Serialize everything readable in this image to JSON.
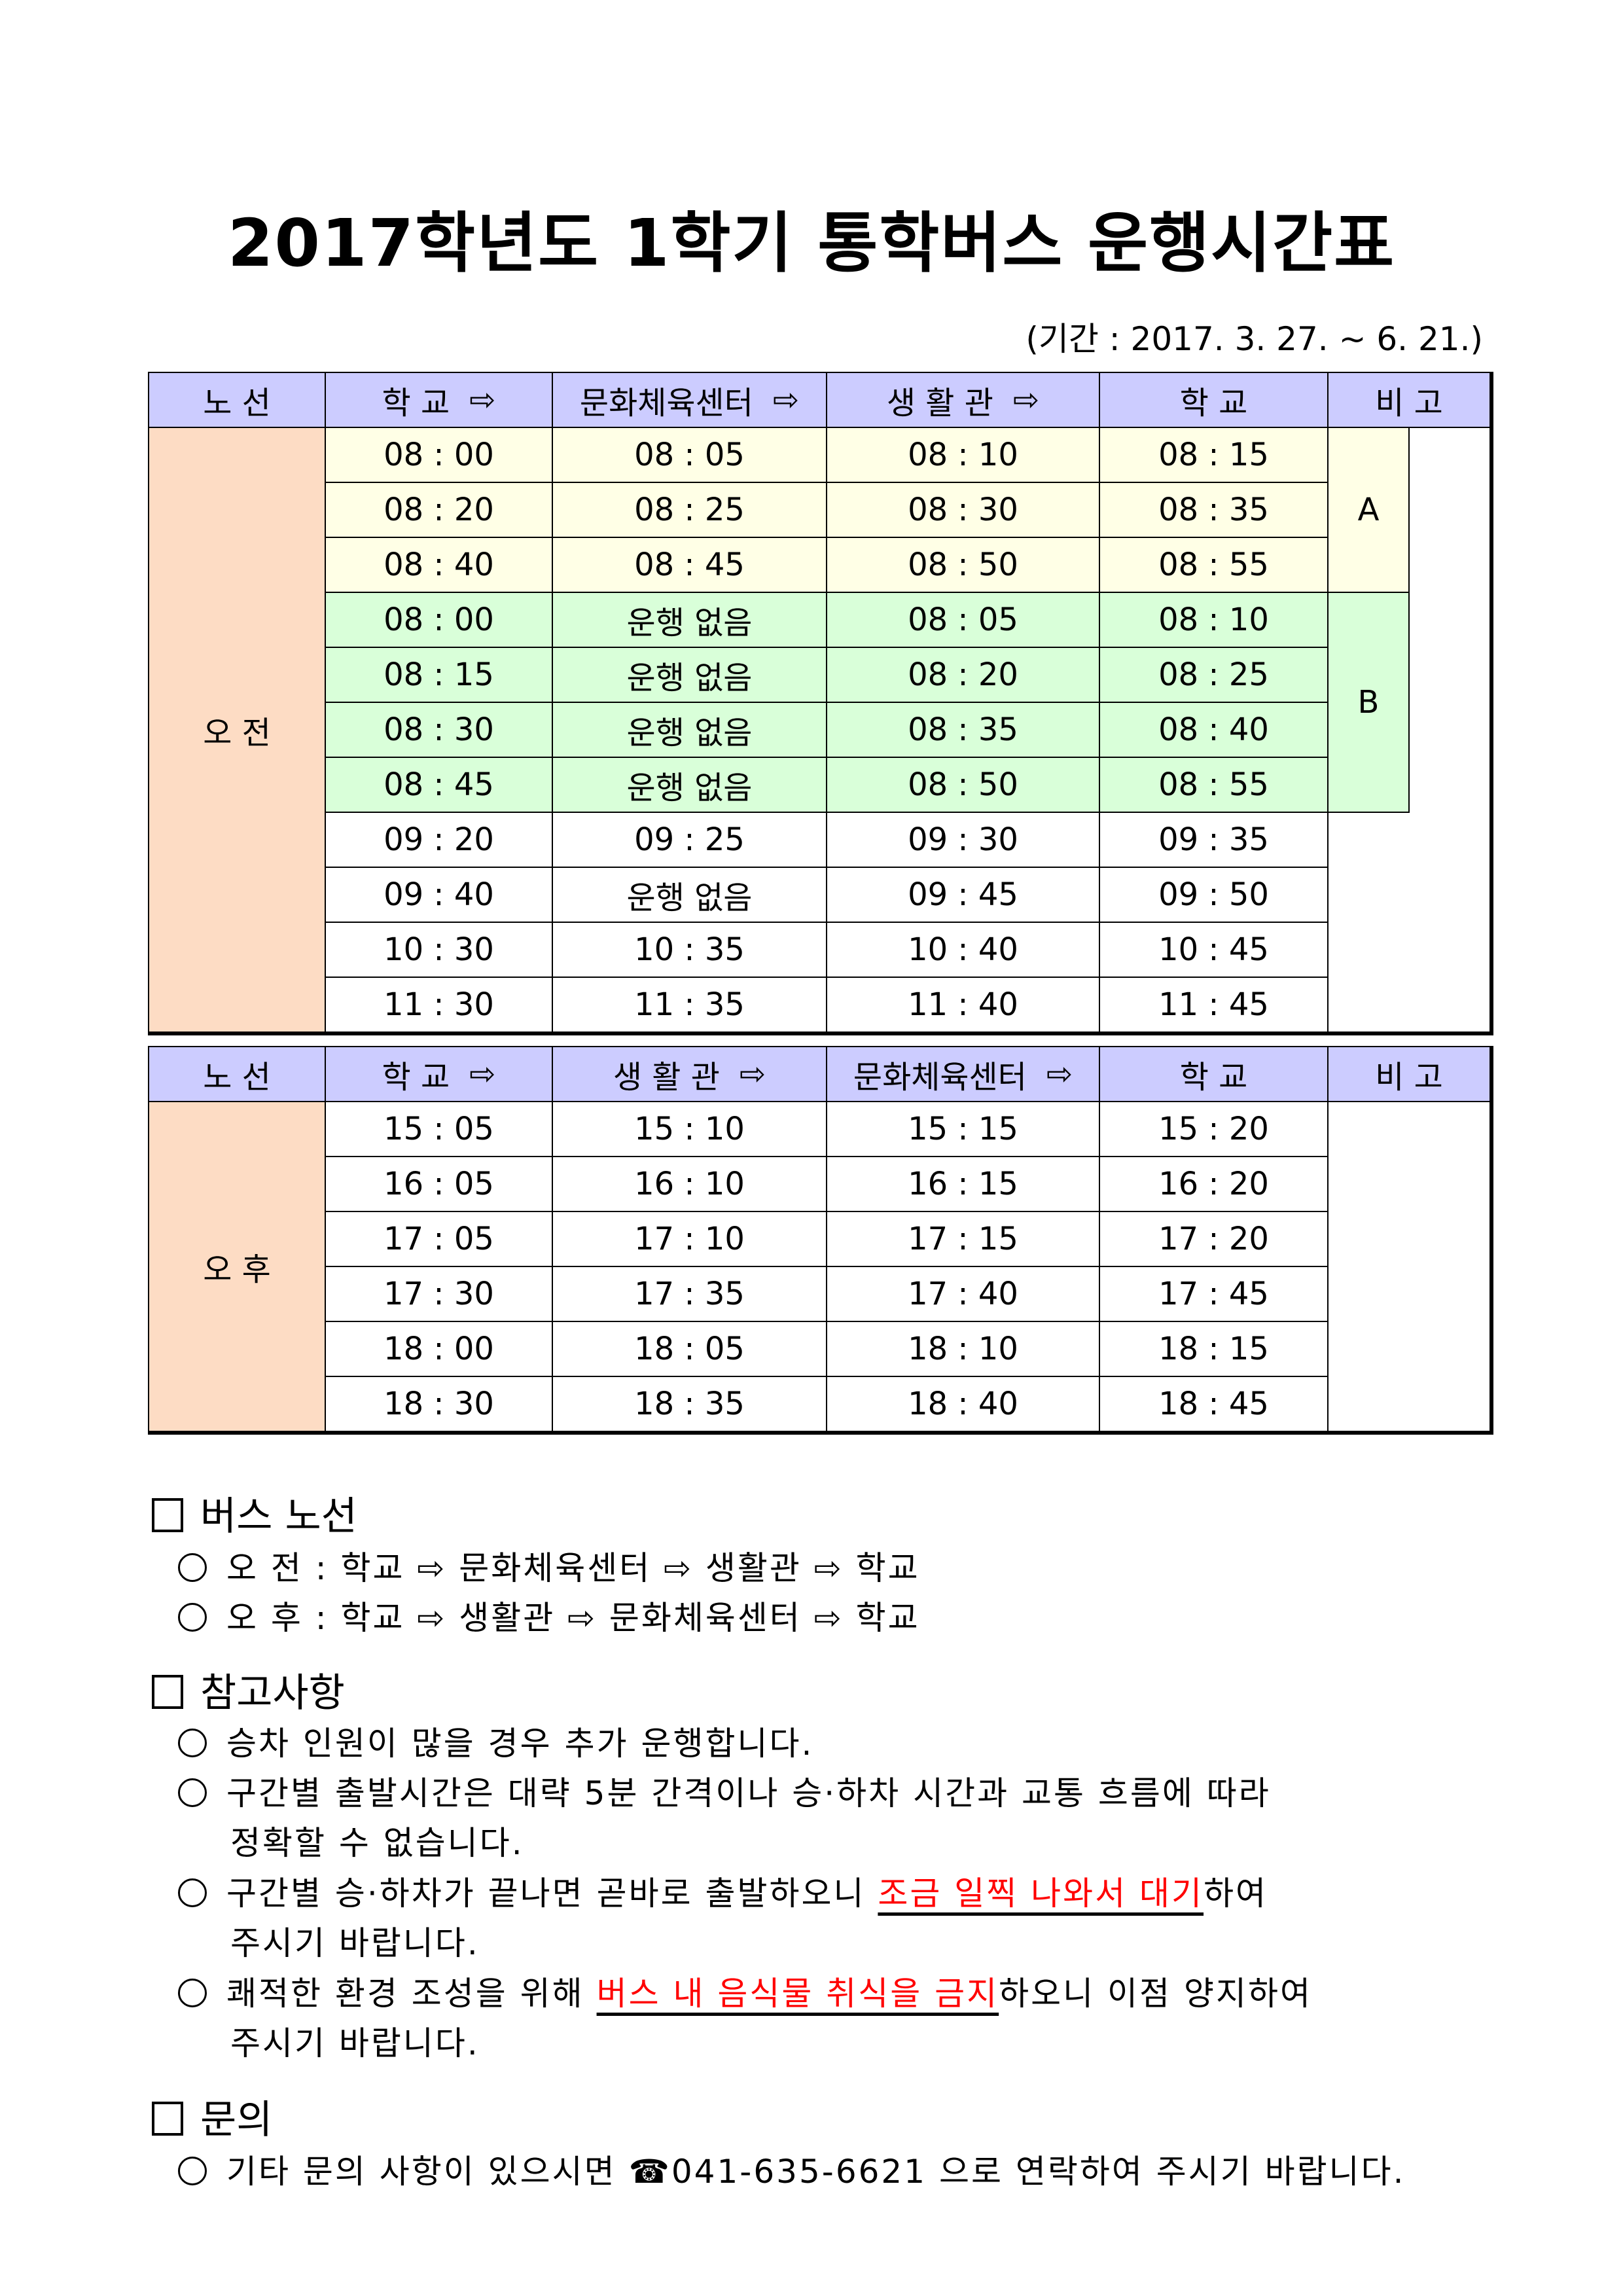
{
  "title": "2017학년도 1학기 통학버스 운행시간표",
  "period": "(기간 : 2017. 3. 27. ~ 6. 21.)",
  "colors": {
    "header": "#CCCCFF",
    "route": "#FDDCC4",
    "group_a": "#FFFFE6",
    "group_b": "#D9FFD9",
    "highlight": "#FF0000"
  },
  "morning": {
    "headers": [
      "노 선",
      "학 교",
      "문화체육센터",
      "생 활 관",
      "학 교",
      "비 고"
    ],
    "route_label": "오 전",
    "arrow_icon": "⇨",
    "rows": [
      [
        "08 : 00",
        "08 : 05",
        "08 : 10",
        "08 : 15"
      ],
      [
        "08 : 20",
        "08 : 25",
        "08 : 30",
        "08 : 35"
      ],
      [
        "08 : 40",
        "08 : 45",
        "08 : 50",
        "08 : 55"
      ],
      [
        "08 : 00",
        "운행 없음",
        "08 : 05",
        "08 : 10"
      ],
      [
        "08 : 15",
        "운행 없음",
        "08 : 20",
        "08 : 25"
      ],
      [
        "08 : 30",
        "운행 없음",
        "08 : 35",
        "08 : 40"
      ],
      [
        "08 : 45",
        "운행 없음",
        "08 : 50",
        "08 : 55"
      ],
      [
        "09 : 20",
        "09 : 25",
        "09 : 30",
        "09 : 35"
      ],
      [
        "09 : 40",
        "운행 없음",
        "09 : 45",
        "09 : 50"
      ],
      [
        "10 : 30",
        "10 : 35",
        "10 : 40",
        "10 : 45"
      ],
      [
        "11 : 30",
        "11 : 35",
        "11 : 40",
        "11 : 45"
      ]
    ],
    "groups": [
      {
        "label": "A",
        "rows": 3
      },
      {
        "label": "B",
        "rows": 4
      }
    ]
  },
  "afternoon": {
    "headers": [
      "노 선",
      "학 교",
      "생 활 관",
      "문화체육센터",
      "학 교",
      "비 고"
    ],
    "route_label": "오 후",
    "rows": [
      [
        "15 : 05",
        "15 : 10",
        "15 : 15",
        "15 : 20"
      ],
      [
        "16 : 05",
        "16 : 10",
        "16 : 15",
        "16 : 20"
      ],
      [
        "17 : 05",
        "17 : 10",
        "17 : 15",
        "17 : 20"
      ],
      [
        "17 : 30",
        "17 : 35",
        "17 : 40",
        "17 : 45"
      ],
      [
        "18 : 00",
        "18 : 05",
        "18 : 10",
        "18 : 15"
      ],
      [
        "18 : 30",
        "18 : 35",
        "18 : 40",
        "18 : 45"
      ]
    ]
  },
  "sections": {
    "route": {
      "heading": "버스 노선",
      "lines": [
        "오 전 : 학교 ⇨ 문화체육센터 ⇨ 생활관 ⇨ 학교",
        "오 후 : 학교 ⇨ 생활관 ⇨ 문화체육센터 ⇨ 학교"
      ]
    },
    "notes": {
      "heading": "참고사항",
      "n1": "승차 인원이 많을 경우 추가 운행합니다.",
      "n2a": "구간별 출발시간은 대략 5분 간격이나 승·하차 시간과 교통 흐름에 따라",
      "n2b": "정확할 수 없습니다.",
      "n3a": "구간별 승·하차가 끝나면 곧바로 출발하오니 ",
      "n3red": "조금 일찍 나와서 대기",
      "n3c": "하여",
      "n3b": "주시기 바랍니다.",
      "n4a": "쾌적한 환경 조성을 위해 ",
      "n4red": "버스 내 음식물 취식을 금지",
      "n4c": "하오니 이점 양지하여",
      "n4b": "주시기 바랍니다."
    },
    "contact": {
      "heading": "문의",
      "pre": "기타 문의 사항이 있으시면 ",
      "phone_icon": "☎",
      "phone": "041-635-6621",
      "post": " 으로 연락하여 주시기 바랍니다."
    }
  }
}
